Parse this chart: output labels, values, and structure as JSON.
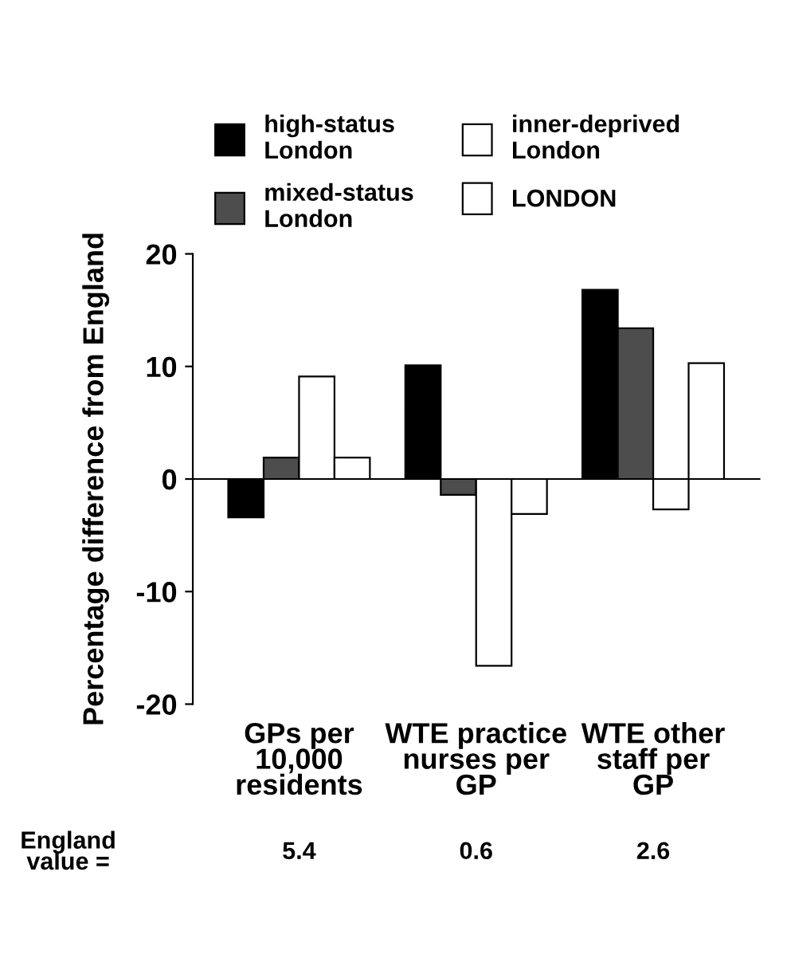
{
  "chart_data": {
    "type": "bar",
    "ylabel": "Percentage difference from England",
    "categories": [
      "GPs per\n10,000\nresidents",
      "WTE practice\nnurses per\nGP",
      "WTE other\nstaff per\nGP"
    ],
    "series": [
      {
        "name": "high-status\nLondon",
        "color": "#000000",
        "values": [
          -3.4,
          10.1,
          16.8
        ]
      },
      {
        "name": "mixed-status\nLondon",
        "color": "#4d4d4d",
        "values": [
          1.9,
          -1.4,
          13.4
        ]
      },
      {
        "name": "inner-deprived\nLondon",
        "color": "#ffffff",
        "values": [
          9.1,
          -16.6,
          -2.7
        ]
      },
      {
        "name": "LONDON",
        "color": "#ffffff",
        "values": [
          1.9,
          -3.1,
          10.3
        ]
      }
    ],
    "ylim": [
      -20,
      20
    ],
    "yticks": [
      20,
      10,
      0,
      -10,
      -20
    ],
    "annotations": [
      "England\nvalue =",
      "5.4",
      "0.6",
      "2.6"
    ],
    "legend": "top"
  }
}
